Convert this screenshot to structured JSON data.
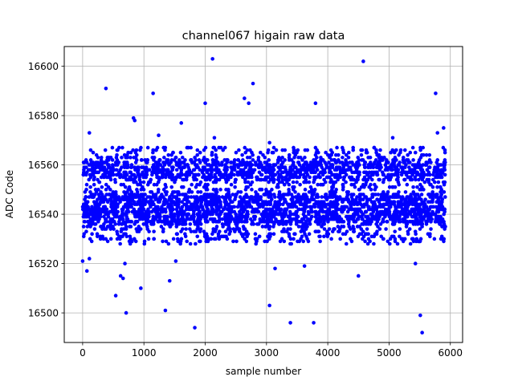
{
  "chart_data": {
    "type": "scatter",
    "title": "channel067 higain raw data",
    "xlabel": "sample number",
    "ylabel": "ADC Code",
    "xlim": [
      -300,
      6200
    ],
    "ylim": [
      16488,
      16608
    ],
    "xticks": [
      0,
      1000,
      2000,
      3000,
      4000,
      5000,
      6000
    ],
    "yticks": [
      16500,
      16520,
      16540,
      16560,
      16580,
      16600
    ],
    "grid": true,
    "marker_color": "#0000ff",
    "bands": {
      "x_range": [
        0,
        5920
      ],
      "main": [
        16528,
        16567
      ],
      "dense": [
        16536,
        16548
      ],
      "dense_upper": [
        16554,
        16562
      ]
    },
    "outliers": [
      {
        "x": 2120,
        "y": 16603
      },
      {
        "x": 4580,
        "y": 16602
      },
      {
        "x": 2780,
        "y": 16593
      },
      {
        "x": 380,
        "y": 16591
      },
      {
        "x": 1150,
        "y": 16589
      },
      {
        "x": 5760,
        "y": 16589
      },
      {
        "x": 2640,
        "y": 16587
      },
      {
        "x": 2000,
        "y": 16585
      },
      {
        "x": 2710,
        "y": 16585
      },
      {
        "x": 3800,
        "y": 16585
      },
      {
        "x": 830,
        "y": 16579
      },
      {
        "x": 850,
        "y": 16578
      },
      {
        "x": 1610,
        "y": 16577
      },
      {
        "x": 5890,
        "y": 16575
      },
      {
        "x": 110,
        "y": 16573
      },
      {
        "x": 1240,
        "y": 16572
      },
      {
        "x": 5790,
        "y": 16573
      },
      {
        "x": 5060,
        "y": 16571
      },
      {
        "x": 2150,
        "y": 16571
      },
      {
        "x": 3050,
        "y": 16569
      },
      {
        "x": 0,
        "y": 16521
      },
      {
        "x": 70,
        "y": 16517
      },
      {
        "x": 110,
        "y": 16522
      },
      {
        "x": 690,
        "y": 16520
      },
      {
        "x": 1520,
        "y": 16521
      },
      {
        "x": 3620,
        "y": 16519
      },
      {
        "x": 3140,
        "y": 16518
      },
      {
        "x": 5430,
        "y": 16520
      },
      {
        "x": 4500,
        "y": 16515
      },
      {
        "x": 620,
        "y": 16515
      },
      {
        "x": 660,
        "y": 16514
      },
      {
        "x": 1420,
        "y": 16513
      },
      {
        "x": 950,
        "y": 16510
      },
      {
        "x": 540,
        "y": 16507
      },
      {
        "x": 3050,
        "y": 16503
      },
      {
        "x": 1350,
        "y": 16501
      },
      {
        "x": 710,
        "y": 16500
      },
      {
        "x": 5510,
        "y": 16499
      },
      {
        "x": 3390,
        "y": 16496
      },
      {
        "x": 3770,
        "y": 16496
      },
      {
        "x": 1830,
        "y": 16494
      },
      {
        "x": 5540,
        "y": 16492
      }
    ]
  }
}
